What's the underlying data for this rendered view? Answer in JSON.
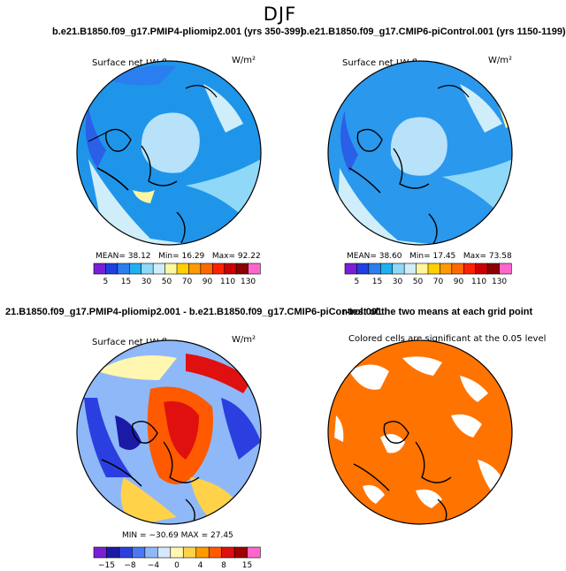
{
  "page": {
    "title": "DJF",
    "run1_header": "b.e21.B1850.f09_g17.PMIP4-pliomip2.001 (yrs 350-399)",
    "run2_header": "b.e21.B1850.f09_g17.CMIP6-piControl.001 (yrs 1150-1199)",
    "diff_header": "21.B1850.f09_g17.PMIP4-pliomip2.001 - b.e21.B1850.f09_g17.CMIP6-piControl.001",
    "ttest_header": "r-test of the two means at each grid point"
  },
  "chart_data": [
    {
      "type": "polar-map",
      "panel": "run1",
      "label": "Surface net LW flux",
      "units": "W/m²",
      "stats": {
        "mean_label": "MEAN=",
        "mean": "38.12",
        "min_label": "Min=",
        "min": "16.29",
        "max_label": "Max=",
        "max": "92.22"
      },
      "colorbar": {
        "colors": [
          "#7a1fd6",
          "#1f3fe0",
          "#2a7ef0",
          "#1fb0f2",
          "#8fd8f7",
          "#cfeefa",
          "#fff7a0",
          "#ffd000",
          "#ff9a00",
          "#ff6a00",
          "#ff2200",
          "#cc0000",
          "#8c0000",
          "#ff66cc"
        ],
        "ticks": [
          "5",
          "15",
          "30",
          "50",
          "70",
          "90",
          "110",
          "130"
        ]
      }
    },
    {
      "type": "polar-map",
      "panel": "run2",
      "label": "Surface net LW flux",
      "units": "W/m²",
      "stats": {
        "mean_label": "MEAN=",
        "mean": "38.60",
        "min_label": "Min=",
        "min": "17.45",
        "max_label": "Max=",
        "max": "73.58"
      },
      "colorbar": {
        "colors": [
          "#7a1fd6",
          "#1f3fe0",
          "#2a7ef0",
          "#1fb0f2",
          "#8fd8f7",
          "#cfeefa",
          "#fff7a0",
          "#ffd000",
          "#ff9a00",
          "#ff6a00",
          "#ff2200",
          "#cc0000",
          "#8c0000",
          "#ff66cc"
        ],
        "ticks": [
          "5",
          "15",
          "30",
          "50",
          "70",
          "90",
          "110",
          "130"
        ]
      }
    },
    {
      "type": "polar-map",
      "panel": "difference",
      "label": "Surface net LW flux",
      "units": "W/m²",
      "stats": {
        "min_label": "MIN =",
        "min": "−30.69",
        "max_label": "MAX =",
        "max": "27.45"
      },
      "colorbar": {
        "colors": [
          "#7a1fd6",
          "#1a1aa6",
          "#2b3fe0",
          "#4a78f0",
          "#8fb8f8",
          "#d8e8ff",
          "#fff7b0",
          "#ffd24a",
          "#ff9a00",
          "#ff5a00",
          "#e01010",
          "#a00000",
          "#ff66cc"
        ],
        "ticks": [
          "−15",
          "−8",
          "−4",
          "0",
          "4",
          "8",
          "15"
        ]
      }
    },
    {
      "type": "polar-map",
      "panel": "significance",
      "label": "Colored cells are significant at the 0.05 level",
      "fill_color": "#ff7300"
    }
  ]
}
